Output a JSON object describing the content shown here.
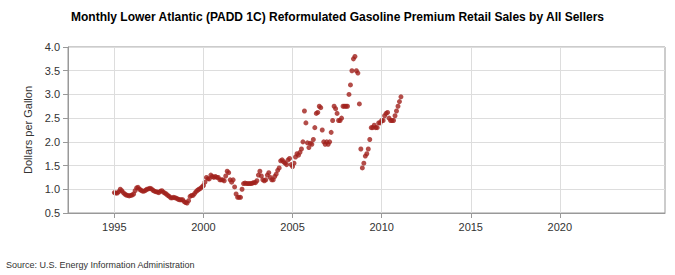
{
  "chart_data": {
    "type": "scatter",
    "title": "Monthly Lower Atlantic (PADD 1C) Reformulated Gasoline Premium Retail Sales by All Sellers",
    "ylabel": "Dollars per Gallon",
    "annotations": [
      "Source: U.S. Energy Information Administration"
    ],
    "color": "#a0201c",
    "marker": "circle",
    "grid": true,
    "xlim": [
      1992.4,
      2025.9
    ],
    "xticks": [
      1995,
      2000,
      2005,
      2010,
      2015,
      2020
    ],
    "ylim": [
      0.5,
      4.0
    ],
    "yticks": [
      0.5,
      {
        "value": 1,
        "label": "1.0"
      },
      1.5,
      {
        "value": 2,
        "label": "2.0"
      },
      2.5,
      {
        "value": 3,
        "label": "3.0"
      },
      3.5,
      {
        "value": 4,
        "label": "4.0"
      }
    ],
    "x": [
      1995.0,
      1995.083,
      1995.167,
      1995.25,
      1995.333,
      1995.417,
      1995.5,
      1995.583,
      1995.667,
      1995.75,
      1995.833,
      1995.917,
      1996.0,
      1996.083,
      1996.167,
      1996.25,
      1996.333,
      1996.417,
      1996.5,
      1996.583,
      1996.667,
      1996.75,
      1996.833,
      1996.917,
      1997.0,
      1997.083,
      1997.167,
      1997.25,
      1997.333,
      1997.417,
      1997.5,
      1997.583,
      1997.667,
      1997.75,
      1997.833,
      1997.917,
      1998.0,
      1998.083,
      1998.167,
      1998.25,
      1998.333,
      1998.417,
      1998.5,
      1998.583,
      1998.667,
      1998.75,
      1998.833,
      1998.917,
      1999.0,
      1999.083,
      1999.167,
      1999.25,
      1999.333,
      1999.417,
      1999.5,
      1999.583,
      1999.667,
      1999.75,
      1999.833,
      1999.917,
      2000.0,
      2000.083,
      2000.167,
      2000.25,
      2000.333,
      2000.417,
      2000.5,
      2000.583,
      2000.667,
      2000.75,
      2000.833,
      2000.917,
      2001.0,
      2001.083,
      2001.167,
      2001.25,
      2001.333,
      2001.417,
      2001.5,
      2001.583,
      2001.667,
      2001.75,
      2001.833,
      2001.917,
      2002.0,
      2002.083,
      2002.167,
      2002.25,
      2002.333,
      2002.417,
      2002.5,
      2002.583,
      2002.667,
      2002.75,
      2002.833,
      2002.917,
      2003.0,
      2003.083,
      2003.167,
      2003.25,
      2003.333,
      2003.417,
      2003.5,
      2003.583,
      2003.667,
      2003.75,
      2003.833,
      2003.917,
      2004.0,
      2004.083,
      2004.167,
      2004.25,
      2004.333,
      2004.417,
      2004.5,
      2004.583,
      2004.667,
      2004.75,
      2004.833,
      2004.917,
      2005.0,
      2005.083,
      2005.167,
      2005.25,
      2005.333,
      2005.417,
      2005.5,
      2005.583,
      2005.667,
      2005.75,
      2005.833,
      2005.917,
      2006.0,
      2006.083,
      2006.167,
      2006.25,
      2006.333,
      2006.417,
      2006.5,
      2006.583,
      2006.667,
      2006.75,
      2006.833,
      2006.917,
      2007.0,
      2007.083,
      2007.167,
      2007.25,
      2007.333,
      2007.417,
      2007.5,
      2007.583,
      2007.667,
      2007.75,
      2007.833,
      2007.917,
      2008.0,
      2008.083,
      2008.167,
      2008.25,
      2008.333,
      2008.417,
      2008.5,
      2008.583,
      2008.667,
      2008.75,
      2008.833,
      2008.917,
      2009.0,
      2009.083,
      2009.167,
      2009.25,
      2009.333,
      2009.417,
      2009.5,
      2009.583,
      2009.667,
      2009.75,
      2009.833,
      2009.917,
      2010.0,
      2010.083,
      2010.167,
      2010.25,
      2010.333,
      2010.417,
      2010.5,
      2010.583,
      2010.667,
      2010.75,
      2010.833,
      2010.917,
      2011.0,
      2011.083
    ],
    "values": [
      0.93,
      0.92,
      0.92,
      0.95,
      1.0,
      0.97,
      0.93,
      0.9,
      0.88,
      0.87,
      0.86,
      0.87,
      0.88,
      0.9,
      0.97,
      1.03,
      1.04,
      1.0,
      0.98,
      0.96,
      0.96,
      0.98,
      1.0,
      1.01,
      1.02,
      1.01,
      0.98,
      0.96,
      0.95,
      0.94,
      0.93,
      0.96,
      0.97,
      0.94,
      0.92,
      0.9,
      0.87,
      0.85,
      0.82,
      0.82,
      0.83,
      0.82,
      0.81,
      0.79,
      0.78,
      0.78,
      0.78,
      0.74,
      0.72,
      0.71,
      0.76,
      0.85,
      0.87,
      0.87,
      0.91,
      0.95,
      0.98,
      1.0,
      1.02,
      1.05,
      1.08,
      1.15,
      1.25,
      1.22,
      1.22,
      1.3,
      1.27,
      1.25,
      1.27,
      1.25,
      1.25,
      1.2,
      1.2,
      1.2,
      1.18,
      1.28,
      1.38,
      1.35,
      1.2,
      1.15,
      1.2,
      1.05,
      0.9,
      0.83,
      0.83,
      0.83,
      1.0,
      1.12,
      1.13,
      1.12,
      1.12,
      1.12,
      1.12,
      1.13,
      1.14,
      1.14,
      1.18,
      1.3,
      1.38,
      1.28,
      1.2,
      1.18,
      1.2,
      1.3,
      1.35,
      1.25,
      1.2,
      1.2,
      1.27,
      1.32,
      1.4,
      1.45,
      1.6,
      1.62,
      1.58,
      1.55,
      1.52,
      1.62,
      1.65,
      1.52,
      1.48,
      1.55,
      1.68,
      1.75,
      1.72,
      1.78,
      1.85,
      2.0,
      2.65,
      2.4,
      1.98,
      1.88,
      1.97,
      1.95,
      2.05,
      2.3,
      2.6,
      2.62,
      2.75,
      2.72,
      2.25,
      2.0,
      1.95,
      2.0,
      1.95,
      2.0,
      2.2,
      2.45,
      2.75,
      2.7,
      2.6,
      2.45,
      2.45,
      2.5,
      2.75,
      2.75,
      2.75,
      2.75,
      3.0,
      3.2,
      3.5,
      3.75,
      3.8,
      3.5,
      3.45,
      2.8,
      1.85,
      1.45,
      1.55,
      1.7,
      1.75,
      1.85,
      2.05,
      2.3,
      2.3,
      2.35,
      2.3,
      2.3,
      2.4,
      2.4,
      2.45,
      2.45,
      2.55,
      2.6,
      2.62,
      2.5,
      2.45,
      2.45,
      2.45,
      2.55,
      2.65,
      2.75,
      2.85,
      2.95
    ]
  }
}
